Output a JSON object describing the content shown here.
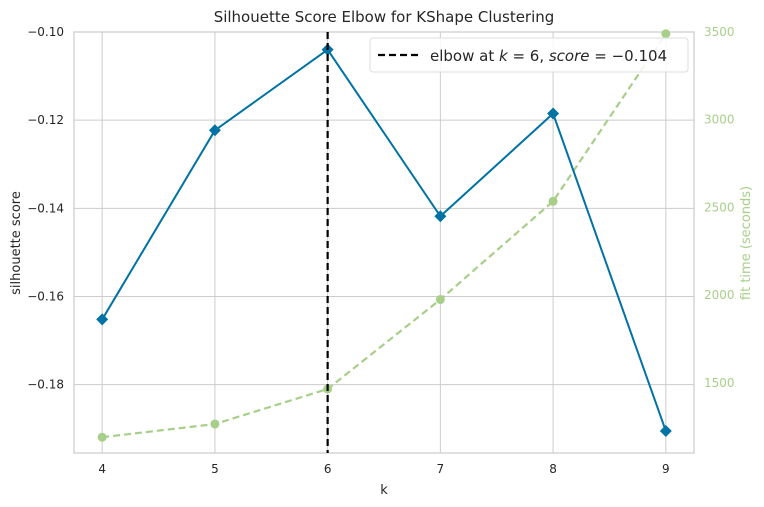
{
  "chart_data": {
    "type": "line",
    "title": "Silhouette Score Elbow for KShape Clustering",
    "xlabel": "k",
    "ylabel": "silhouette score",
    "y2label": "fit time (seconds)",
    "x": [
      4,
      5,
      6,
      7,
      8,
      9
    ],
    "xlim": [
      3.75,
      9.25
    ],
    "ylim": [
      -0.1955,
      -0.1
    ],
    "y2lim": [
      1100,
      3500
    ],
    "xticks": [
      "4",
      "5",
      "6",
      "7",
      "8",
      "9"
    ],
    "yticks": [
      {
        "value": -0.1,
        "label": "−0.10"
      },
      {
        "value": -0.12,
        "label": "−0.12"
      },
      {
        "value": -0.14,
        "label": "−0.14"
      },
      {
        "value": -0.16,
        "label": "−0.16"
      },
      {
        "value": -0.18,
        "label": "−0.18"
      }
    ],
    "y2ticks": [
      {
        "value": 3500,
        "label": "3500"
      },
      {
        "value": 3000,
        "label": "3000"
      },
      {
        "value": 2500,
        "label": "2500"
      },
      {
        "value": 2000,
        "label": "2000"
      },
      {
        "value": 1500,
        "label": "1500"
      }
    ],
    "series": [
      {
        "axis": "left",
        "color": "#0072a3",
        "marker": "diamond",
        "values": [
          -0.1652,
          -0.1223,
          -0.104,
          -0.1418,
          -0.1185,
          -0.1905
        ]
      },
      {
        "axis": "right",
        "color": "#a8cf8a",
        "marker": "circle",
        "dashed": true,
        "values": [
          1190,
          1265,
          1465,
          1975,
          2535,
          3490
        ]
      }
    ],
    "elbow": {
      "k": 6,
      "color": "#000000"
    },
    "legend": {
      "position": "top-right",
      "label_prefix": "elbow at ",
      "k_var": "k",
      "eq1": " = 6, ",
      "score_var": "score",
      "eq2": " = −0.104"
    },
    "grid": true,
    "colors": {
      "axis2": "#a8cf8a",
      "grid": "#cccccc",
      "spine": "#cccccc"
    }
  }
}
